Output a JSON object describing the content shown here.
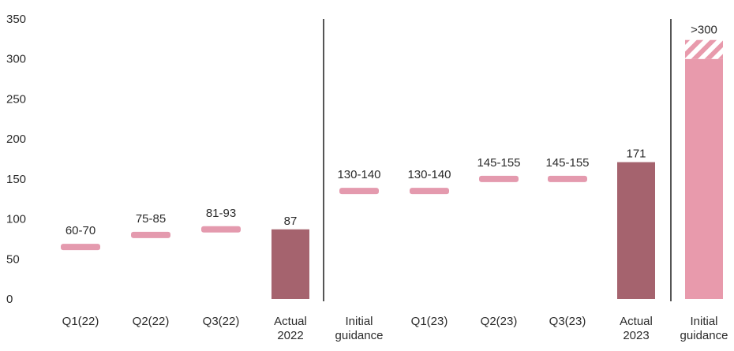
{
  "colors": {
    "range_marker": "#e49aae",
    "actual_bar": "#a5636e",
    "guidance_bar": "#e89aac",
    "divider": "#555555",
    "text": "#2b2b2b"
  },
  "chart_data": {
    "type": "bar",
    "title": "",
    "xlabel": "",
    "ylabel": "",
    "ylim": [
      0,
      350
    ],
    "yticks": [
      0,
      50,
      100,
      150,
      200,
      250,
      300,
      350
    ],
    "grid": false,
    "dividers_after": [
      "Actual 2022",
      "Actual 2023"
    ],
    "items": [
      {
        "category": [
          "Q1(22)"
        ],
        "kind": "range",
        "low": 60,
        "high": 70,
        "label": "60-70"
      },
      {
        "category": [
          "Q2(22)"
        ],
        "kind": "range",
        "low": 75,
        "high": 85,
        "label": "75-85"
      },
      {
        "category": [
          "Q3(22)"
        ],
        "kind": "range",
        "low": 81,
        "high": 93,
        "label": "81-93"
      },
      {
        "category": [
          "Actual",
          "2022"
        ],
        "kind": "actual",
        "value": 87,
        "label": "87"
      },
      {
        "category": [
          "Initial",
          "guidance"
        ],
        "kind": "range",
        "low": 130,
        "high": 140,
        "label": "130-140"
      },
      {
        "category": [
          "Q1(23)"
        ],
        "kind": "range",
        "low": 130,
        "high": 140,
        "label": "130-140"
      },
      {
        "category": [
          "Q2(23)"
        ],
        "kind": "range",
        "low": 145,
        "high": 155,
        "label": "145-155"
      },
      {
        "category": [
          "Q3(23)"
        ],
        "kind": "range",
        "low": 145,
        "high": 155,
        "label": "145-155"
      },
      {
        "category": [
          "Actual",
          "2023"
        ],
        "kind": "actual",
        "value": 171,
        "label": "171"
      },
      {
        "category": [
          "Initial",
          "guidance"
        ],
        "kind": "guidance",
        "value": 300,
        "label": ">300"
      }
    ]
  }
}
